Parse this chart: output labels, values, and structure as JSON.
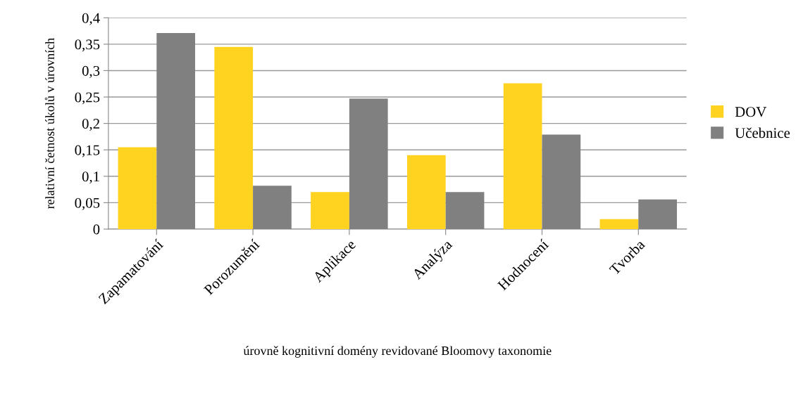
{
  "chart_data": {
    "type": "bar",
    "xlabel": "úrovně kognitivní domény revidované Bloomovy taxonomie",
    "ylabel": "relativní četnost úkolů v úrovních",
    "categories": [
      "Zapamatování",
      "Porozumění",
      "Aplikace",
      "Analýza",
      "Hodnocení",
      "Tvorba"
    ],
    "series": [
      {
        "name": "DOV",
        "color": "#ffd320",
        "values": [
          0.155,
          0.345,
          0.07,
          0.14,
          0.276,
          0.019
        ]
      },
      {
        "name": "Učebnice",
        "color": "#808080",
        "values": [
          0.371,
          0.082,
          0.247,
          0.07,
          0.179,
          0.056
        ]
      }
    ],
    "ylim": [
      0,
      0.4
    ],
    "yticks": [
      {
        "value": 0,
        "label": "0"
      },
      {
        "value": 0.05,
        "label": "0,05"
      },
      {
        "value": 0.1,
        "label": "0,1"
      },
      {
        "value": 0.15,
        "label": "0,15"
      },
      {
        "value": 0.2,
        "label": "0,2"
      },
      {
        "value": 0.25,
        "label": "0,25"
      },
      {
        "value": 0.3,
        "label": "0,3"
      },
      {
        "value": 0.35,
        "label": "0,35"
      },
      {
        "value": 0.4,
        "label": "0,4"
      }
    ],
    "grid": "y",
    "legend": "right"
  }
}
